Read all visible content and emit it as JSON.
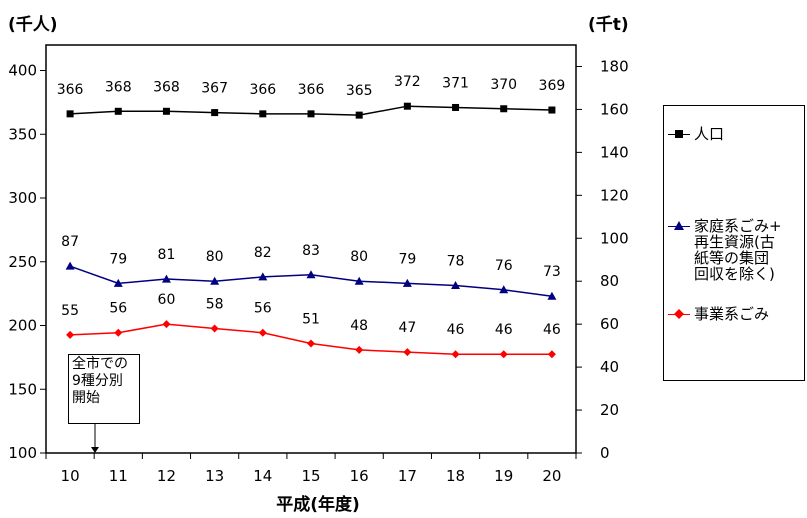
{
  "chart_data": {
    "type": "line",
    "left_axis_unit": "(千人)",
    "right_axis_unit": "(千t)",
    "xlabel": "平成(年度)",
    "categories": [
      "10",
      "11",
      "12",
      "13",
      "14",
      "15",
      "16",
      "17",
      "18",
      "19",
      "20"
    ],
    "left_ylim": [
      100,
      420
    ],
    "left_ticks": [
      "100",
      "150",
      "200",
      "250",
      "300",
      "350",
      "400"
    ],
    "right_ylim": [
      0,
      190
    ],
    "right_ticks": [
      "0",
      "20",
      "40",
      "60",
      "80",
      "100",
      "120",
      "140",
      "160",
      "180"
    ],
    "grid": false,
    "legend_position": "right",
    "series": [
      {
        "name": "人口",
        "axis": "left",
        "color": "#000000",
        "marker": "square",
        "values": [
          366,
          368,
          368,
          367,
          366,
          366,
          365,
          372,
          371,
          370,
          369
        ],
        "labels": [
          "366",
          "368",
          "368",
          "367",
          "366",
          "366",
          "365",
          "372",
          "371",
          "370",
          "369"
        ]
      },
      {
        "name": "家庭系ごみ+\n再生資源(古\n紙等の集団\n回収を除く)",
        "axis": "right",
        "color": "#000080",
        "marker": "triangle",
        "values": [
          87,
          79,
          81,
          80,
          82,
          83,
          80,
          79,
          78,
          76,
          73
        ],
        "labels": [
          "87",
          "79",
          "81",
          "80",
          "82",
          "83",
          "80",
          "79",
          "78",
          "76",
          "73"
        ]
      },
      {
        "name": "事業系ごみ",
        "axis": "right",
        "color": "#ff0000",
        "marker": "diamond",
        "values": [
          55,
          56,
          60,
          58,
          56,
          51,
          48,
          47,
          46,
          46,
          46
        ],
        "labels": [
          "55",
          "56",
          "60",
          "58",
          "56",
          "51",
          "48",
          "47",
          "46",
          "46",
          "46"
        ]
      }
    ],
    "annotation": {
      "text": "全市での\n9種分別\n開始",
      "category": "10"
    }
  }
}
